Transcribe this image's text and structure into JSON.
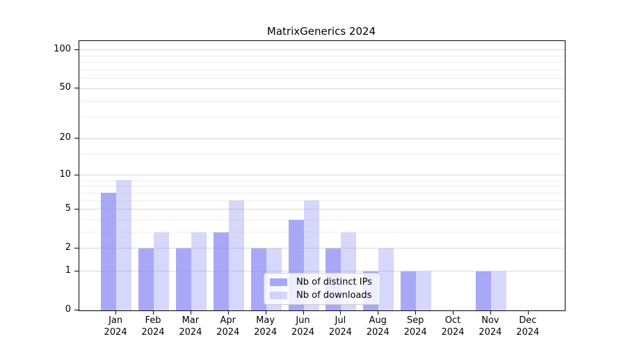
{
  "chart_data": {
    "type": "bar",
    "title": "MatrixGenerics 2024",
    "categories": [
      "Jan",
      "Feb",
      "Mar",
      "Apr",
      "May",
      "Jun",
      "Jul",
      "Aug",
      "Sep",
      "Oct",
      "Nov",
      "Dec"
    ],
    "x_axis": {
      "tick_label_line2": "2024"
    },
    "series": [
      {
        "name": "Nb of distinct IPs",
        "values": [
          7,
          2,
          2,
          3,
          2,
          4,
          2,
          1,
          1,
          0,
          1,
          0
        ],
        "color": "rgba(139,139,244,0.75)"
      },
      {
        "name": "Nb of downloads",
        "values": [
          9,
          3,
          3,
          6,
          2,
          6,
          3,
          2,
          1,
          0,
          1,
          0
        ],
        "color": "rgba(139,139,244,0.35)"
      }
    ],
    "y_axis": {
      "scale": "log1p",
      "major_ticks": [
        0,
        1,
        2,
        5,
        10,
        20,
        50,
        100
      ],
      "minor_gridlines": [
        3,
        4,
        6,
        7,
        8,
        9,
        15,
        30,
        40,
        60,
        70,
        80,
        90
      ],
      "range_max": 118
    },
    "legend": {
      "location": "lower center inside plot"
    },
    "grid": true,
    "colors": {
      "bar_base": "#8b8bf4",
      "major_grid": "#d6d6d6",
      "minor_grid": "#ededed",
      "spine": "#000000",
      "background": "#ffffff"
    }
  }
}
